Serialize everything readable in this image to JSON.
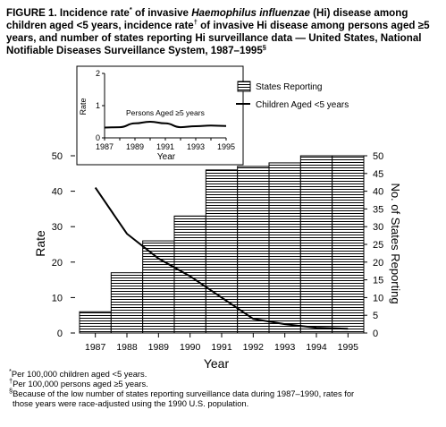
{
  "title": {
    "p1": "FIGURE 1. Incidence rate",
    "s1": "*",
    "p2": " of invasive ",
    "italic": "Haemophilus influenzae",
    "p3": " (Hi) disease among children aged <5 years, incidence rate",
    "s2": "†",
    "p4": " of invasive Hi disease among persons aged ≥5 years, and number of states reporting Hi surveillance data — United States, National Notifiable Diseases Surveillance System, 1987–1995",
    "s3": "§"
  },
  "footnotes": [
    {
      "mark": "*",
      "text": "Per 100,000 children aged <5 years."
    },
    {
      "mark": "†",
      "text": "Per 100,000 persons aged ≥5 years."
    },
    {
      "mark": "§",
      "text": "Because of the low number of states reporting surveillance data during 1987–1990, rates for"
    },
    {
      "mark": "",
      "text": "those years were race-adjusted using the 1990 U.S. population."
    }
  ],
  "chart_data": [
    {
      "type": "bar",
      "categories": [
        "1987",
        "1988",
        "1989",
        "1990",
        "1991",
        "1992",
        "1993",
        "1994",
        "1995"
      ],
      "x_label": "Year",
      "y_label": "Rate",
      "y_ticks": [
        "0",
        "10",
        "20",
        "30",
        "40",
        "50"
      ],
      "ylim": [
        0,
        50
      ],
      "y2_label": "No. of States Reporting",
      "y2_ticks": [
        "0",
        "5",
        "10",
        "15",
        "20",
        "25",
        "30",
        "35",
        "40",
        "45",
        "50"
      ],
      "y2lim": [
        0,
        50
      ],
      "series": [
        {
          "name": "States Reporting",
          "type": "bar",
          "axis": "right",
          "values": [
            6,
            17,
            26,
            33,
            46,
            47,
            48,
            50,
            50
          ]
        },
        {
          "name": "Children Aged <5 years",
          "type": "line",
          "axis": "left",
          "values": [
            41,
            28,
            21,
            16,
            10,
            4,
            2.5,
            1.5,
            1.2
          ]
        }
      ],
      "legend_position": "top-right",
      "hatch_color": "#000000"
    },
    {
      "type": "line",
      "placement": "inset",
      "x_label": "Year",
      "y_label": "Rate",
      "x_ticks": [
        "1987",
        "1989",
        "1991",
        "1993",
        "1995"
      ],
      "y_ticks": [
        "0",
        "1",
        "2"
      ],
      "ylim": [
        0,
        2
      ],
      "x": [
        1987,
        1988,
        1989,
        1990,
        1991,
        1992,
        1993,
        1994,
        1995
      ],
      "series": [
        {
          "name": "Persons Aged ≥5 years",
          "values": [
            0.32,
            0.33,
            0.45,
            0.5,
            0.45,
            0.33,
            0.36,
            0.38,
            0.37
          ]
        }
      ]
    }
  ]
}
